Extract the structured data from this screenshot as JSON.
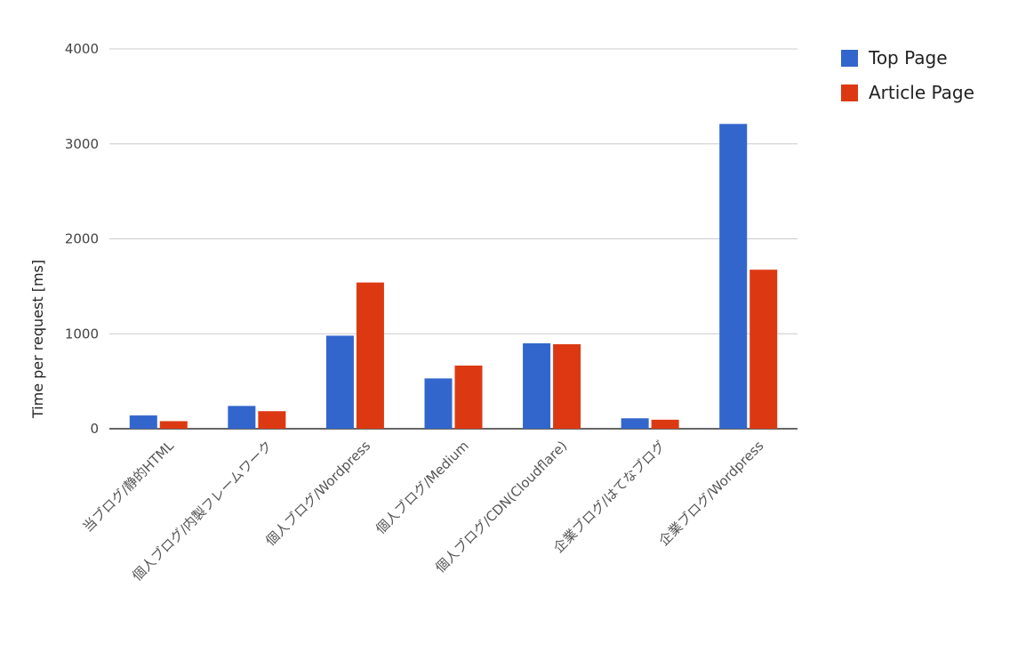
{
  "chart_data": {
    "type": "bar",
    "title": "",
    "xlabel": "",
    "ylabel": "Time per request [ms]",
    "ylim": [
      0,
      4000
    ],
    "yticks": [
      "0",
      "1000",
      "2000",
      "3000",
      "4000"
    ],
    "grid": true,
    "legend_position": "top-right",
    "categories": [
      "当ブログ/静的HTML",
      "個人ブログ/内製フレームワーク",
      "個人ブログ/Wordpress",
      "個人ブログ/Medium",
      "個人ブログ/CDN(Cloudflare)",
      "企業ブログ/はてなブログ",
      "企業ブログ/Wordpress"
    ],
    "series": [
      {
        "name": "Top Page",
        "color": "#3366cc",
        "values": [
          140,
          240,
          980,
          530,
          900,
          110,
          3210
        ]
      },
      {
        "name": "Article Page",
        "color": "#dc3912",
        "values": [
          80,
          185,
          1540,
          665,
          890,
          95,
          1675
        ]
      }
    ]
  }
}
